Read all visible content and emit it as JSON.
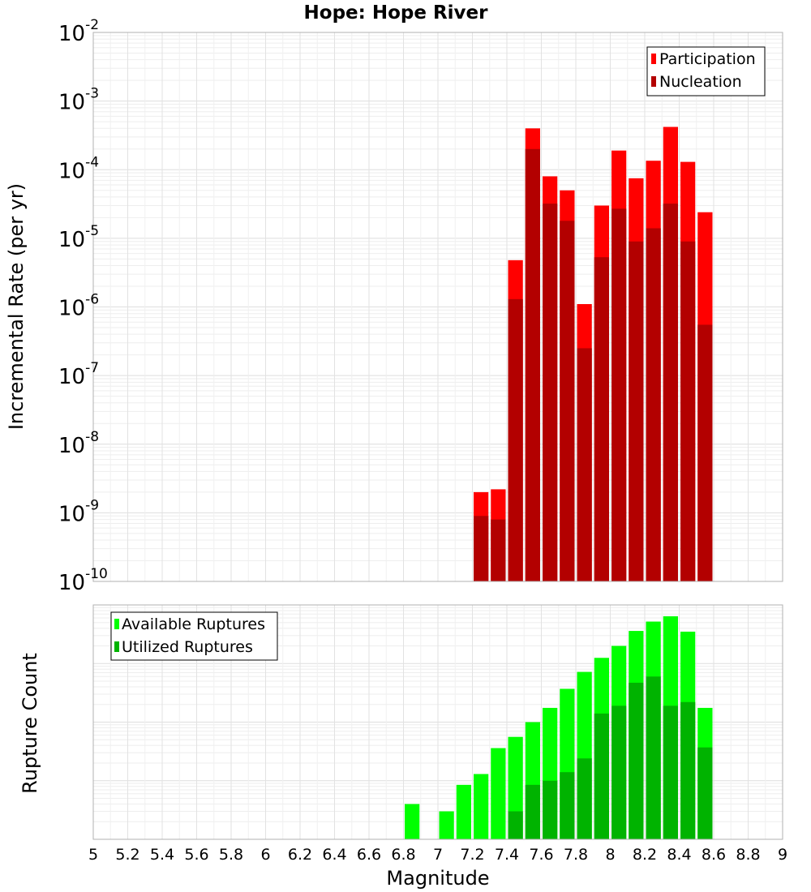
{
  "chart_data": [
    {
      "type": "bar",
      "title": "Hope: Hope River",
      "xlabel": "",
      "ylabel": "Incremental Rate (per yr)",
      "yscale": "log",
      "xlim": [
        5,
        9
      ],
      "ylim_exponents": [
        -10,
        -2
      ],
      "grid": true,
      "legend_placement": "top-right",
      "bin_width": 0.1,
      "bin_centers": [
        7.25,
        7.35,
        7.45,
        7.55,
        7.65,
        7.75,
        7.85,
        7.95,
        8.05,
        8.15,
        8.25,
        8.35,
        8.45,
        8.55
      ],
      "series": [
        {
          "name": "Participation",
          "color": "#ff0000",
          "values": [
            2e-09,
            2.2e-09,
            4.8e-06,
            0.0004,
            8e-05,
            5e-05,
            1.1e-06,
            3e-05,
            0.00019,
            7.5e-05,
            0.000135,
            0.00042,
            0.00013,
            2.4e-05
          ]
        },
        {
          "name": "Nucleation",
          "color": "#b30000",
          "values": [
            9e-10,
            8e-10,
            1.3e-06,
            0.0002,
            3.2e-05,
            1.8e-05,
            2.5e-07,
            5.3e-06,
            2.7e-05,
            9e-06,
            1.4e-05,
            3.2e-05,
            9e-06,
            5.5e-07
          ]
        }
      ]
    },
    {
      "type": "bar",
      "title": "",
      "xlabel": "Magnitude",
      "ylabel": "Rupture Count",
      "yscale": "log",
      "xlim": [
        5,
        9
      ],
      "ylim_exponents": [
        0,
        4
      ],
      "grid": true,
      "legend_placement": "top-left",
      "bin_width": 0.1,
      "bin_centers": [
        6.85,
        6.95,
        7.05,
        7.15,
        7.25,
        7.35,
        7.45,
        7.55,
        7.65,
        7.75,
        7.85,
        7.95,
        8.05,
        8.15,
        8.25,
        8.35,
        8.45,
        8.55
      ],
      "series": [
        {
          "name": "Available Ruptures",
          "color": "#00ff00",
          "values": [
            4,
            1,
            3,
            8.5,
            13,
            36,
            56,
            100,
            175,
            370,
            720,
            1250,
            2000,
            3600,
            5200,
            6400,
            3500,
            175
          ]
        },
        {
          "name": "Utilized Ruptures",
          "color": "#00b300",
          "values": [
            0,
            0,
            0,
            0,
            1,
            1,
            3,
            8.5,
            10,
            14,
            24,
            140,
            190,
            470,
            600,
            190,
            220,
            37
          ]
        }
      ]
    }
  ],
  "x_ticks": [
    "5",
    "5.2",
    "5.4",
    "5.6",
    "5.8",
    "6",
    "6.2",
    "6.4",
    "6.6",
    "6.8",
    "7",
    "7.2",
    "7.4",
    "7.6",
    "7.8",
    "8",
    "8.2",
    "8.4",
    "8.6",
    "8.8",
    "9"
  ],
  "top_y_ticks": [
    {
      "value": -10,
      "base": "10",
      "exp": "-10"
    },
    {
      "value": -9,
      "base": "10",
      "exp": "-9"
    },
    {
      "value": -8,
      "base": "10",
      "exp": "-8"
    },
    {
      "value": -7,
      "base": "10",
      "exp": "-7"
    },
    {
      "value": -6,
      "base": "10",
      "exp": "-6"
    },
    {
      "value": -5,
      "base": "10",
      "exp": "-5"
    },
    {
      "value": -4,
      "base": "10",
      "exp": "-4"
    },
    {
      "value": -3,
      "base": "10",
      "exp": "-3"
    },
    {
      "value": -2,
      "base": "10",
      "exp": "-2"
    }
  ],
  "bottom_y_ticks": [
    {
      "value": 0,
      "base": "10",
      "exp": "0"
    },
    {
      "value": 1,
      "base": "10",
      "exp": "1"
    },
    {
      "value": 2,
      "base": "10",
      "exp": "2"
    },
    {
      "value": 3,
      "base": "10",
      "exp": "3"
    },
    {
      "value": 4,
      "base": "10",
      "exp": "4"
    }
  ]
}
